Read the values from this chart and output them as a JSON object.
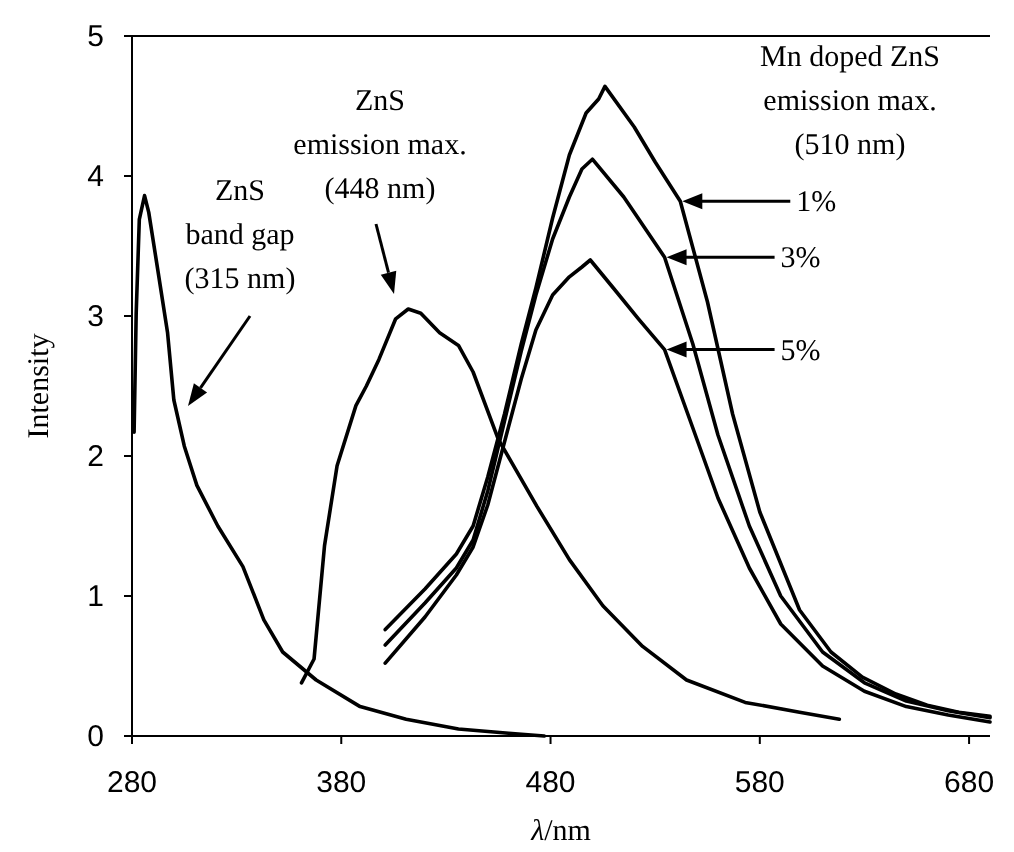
{
  "chart_data": {
    "type": "line",
    "xlabel": "λ/nm",
    "ylabel": "Intensity",
    "xlim": [
      280,
      690
    ],
    "ylim": [
      0,
      5
    ],
    "xticks": [
      280,
      380,
      480,
      580,
      680
    ],
    "yticks": [
      0,
      1,
      2,
      3,
      4,
      5
    ],
    "grid": false,
    "legend": "right",
    "marker": "none",
    "line_style": "solid",
    "series": [
      {
        "color": "#000000",
        "x": [
          281,
          282,
          283.5,
          286,
          288,
          292,
          297,
          300,
          305,
          311,
          321,
          333,
          343,
          352,
          368,
          389,
          411,
          436,
          460,
          477
        ],
        "values": [
          2.17,
          3.02,
          3.69,
          3.86,
          3.74,
          3.36,
          2.88,
          2.4,
          2.07,
          1.79,
          1.5,
          1.21,
          0.83,
          0.6,
          0.4,
          0.21,
          0.12,
          0.05,
          0.02,
          0
        ]
      },
      {
        "color": "#000000",
        "x": [
          361,
          367,
          372,
          378,
          387,
          392,
          398,
          406,
          412,
          418,
          427,
          436,
          443,
          455,
          473.5,
          489,
          505,
          524,
          545,
          573,
          599,
          618
        ],
        "values": [
          0.38,
          0.55,
          1.36,
          1.93,
          2.36,
          2.5,
          2.69,
          2.98,
          3.05,
          3.02,
          2.88,
          2.79,
          2.6,
          2.12,
          1.64,
          1.26,
          0.93,
          0.64,
          0.4,
          0.24,
          0.17,
          0.12
        ]
      },
      {
        "name": "1%",
        "color": "#000000",
        "x": [
          401,
          420,
          435,
          443,
          450,
          458,
          466,
          473,
          481,
          489,
          497,
          503,
          506,
          520,
          530,
          542,
          555,
          567,
          580,
          599,
          614,
          629,
          645,
          660,
          675,
          690
        ],
        "values": [
          0.76,
          1.05,
          1.3,
          1.5,
          1.85,
          2.3,
          2.8,
          3.2,
          3.7,
          4.15,
          4.45,
          4.55,
          4.64,
          4.35,
          4.1,
          3.82,
          3.1,
          2.3,
          1.6,
          0.9,
          0.6,
          0.42,
          0.3,
          0.22,
          0.17,
          0.14
        ]
      },
      {
        "name": "3%",
        "color": "#000000",
        "x": [
          401,
          420,
          435,
          443,
          450,
          458,
          466,
          473,
          481,
          489,
          495,
          500,
          515,
          534.5,
          548,
          560,
          575,
          590,
          610,
          630,
          650,
          670,
          690
        ],
        "values": [
          0.65,
          0.95,
          1.2,
          1.4,
          1.75,
          2.25,
          2.75,
          3.15,
          3.55,
          3.85,
          4.05,
          4.12,
          3.85,
          3.42,
          2.8,
          2.15,
          1.5,
          1.0,
          0.6,
          0.38,
          0.25,
          0.18,
          0.13
        ]
      },
      {
        "name": "5%",
        "color": "#000000",
        "x": [
          401,
          420,
          435,
          443,
          450,
          458,
          466,
          473,
          481,
          489,
          495,
          499,
          510,
          522,
          534.5,
          548,
          560,
          575,
          590,
          610,
          630,
          650,
          670,
          690
        ],
        "values": [
          0.52,
          0.85,
          1.15,
          1.35,
          1.65,
          2.1,
          2.55,
          2.9,
          3.15,
          3.28,
          3.35,
          3.4,
          3.2,
          2.98,
          2.76,
          2.2,
          1.7,
          1.2,
          0.8,
          0.5,
          0.32,
          0.21,
          0.15,
          0.1
        ]
      }
    ],
    "annotations": [
      "ZnS\nband gap\n(315 nm)",
      "ZnS\nemission max.\n(448 nm)",
      "Mn doped ZnS\nemission max.\n(510 nm)"
    ]
  }
}
